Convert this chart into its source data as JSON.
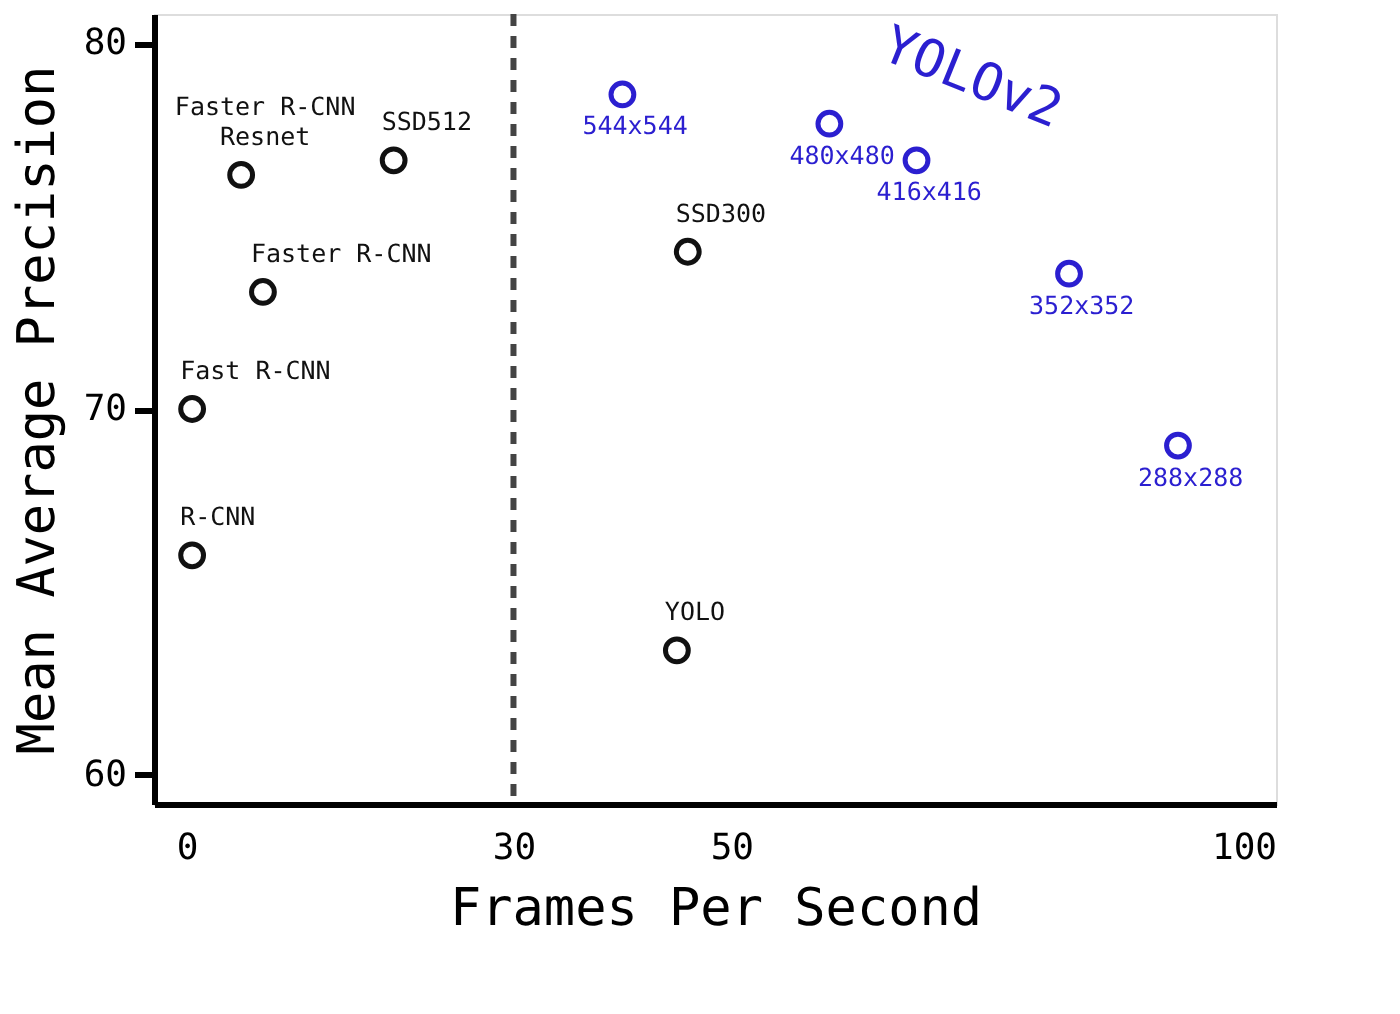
{
  "chart_data": {
    "type": "scatter",
    "xlabel": "Frames Per Second",
    "ylabel": "Mean Average Precision",
    "xlim": [
      -3,
      100
    ],
    "xticks": [
      0,
      30,
      50,
      100
    ],
    "ylim": [
      59.2,
      80.8
    ],
    "yticks": [
      60,
      70,
      80
    ],
    "grid": false,
    "marker": "circle",
    "ref_lines": [
      {
        "axis": "x",
        "value": 30,
        "line_style": "dashed",
        "color": "#444444"
      }
    ],
    "series": [
      {
        "color": "#111111",
        "x": [
          0.5,
          0.5,
          7,
          5,
          19,
          46,
          45
        ],
        "values": [
          66.0,
          70.0,
          73.2,
          76.4,
          76.8,
          74.3,
          63.4
        ]
      },
      {
        "name": "YOLOv2",
        "color": "#2b1fd0",
        "x": [
          40,
          59,
          67,
          81,
          91
        ],
        "values": [
          78.6,
          77.8,
          76.8,
          73.7,
          69.0
        ]
      }
    ],
    "annotations": [
      {
        "text": "R-CNN",
        "x": 0.5,
        "y": 66.0
      },
      {
        "text": "Fast R-CNN",
        "x": 0.5,
        "y": 70.0
      },
      {
        "text": "Faster R-CNN",
        "x": 7,
        "y": 73.2
      },
      {
        "text": "Faster R-CNN\nResnet",
        "x": 5,
        "y": 76.4
      },
      {
        "text": "SSD512",
        "x": 19,
        "y": 76.8
      },
      {
        "text": "SSD300",
        "x": 46,
        "y": 74.3
      },
      {
        "text": "YOLO",
        "x": 45,
        "y": 63.4
      },
      {
        "text": "544x544",
        "x": 40,
        "y": 78.6
      },
      {
        "text": "480x480",
        "x": 59,
        "y": 77.8
      },
      {
        "text": "416x416",
        "x": 67,
        "y": 76.8
      },
      {
        "text": "352x352",
        "x": 81,
        "y": 73.7
      },
      {
        "text": "288x288",
        "x": 91,
        "y": 69.0
      }
    ]
  }
}
